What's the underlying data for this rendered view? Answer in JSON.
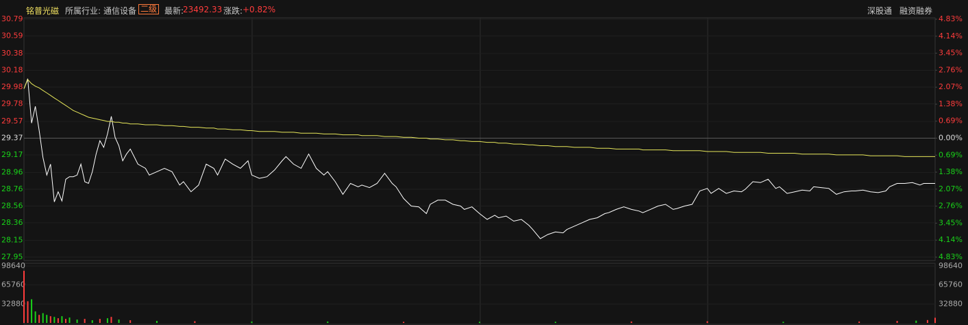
{
  "header": {
    "stock": "铭普光磁",
    "industry_label": "所属行业:",
    "industry": "通信设备",
    "level": "二级",
    "latest_label": "最新:",
    "latest": "23492.33",
    "change_label": "涨跌:",
    "change": "+0.82%",
    "tag1": "深股通",
    "tag2": "融资融券"
  },
  "chart_data": [
    {
      "type": "line",
      "x": [
        0,
        1,
        2,
        3,
        4,
        5,
        6,
        7,
        8,
        9,
        10,
        11,
        12,
        13,
        14,
        15,
        16,
        17,
        18,
        19,
        20,
        21,
        22,
        23,
        24,
        25,
        26,
        27,
        28,
        30,
        32,
        33,
        35,
        37,
        39,
        41,
        42,
        44,
        46,
        48,
        50,
        51,
        53,
        55,
        57,
        59,
        60,
        62,
        64,
        66,
        68,
        69,
        71,
        73,
        75,
        77,
        79,
        80,
        82,
        84,
        86,
        88,
        89,
        91,
        93,
        95,
        97,
        98,
        100,
        102,
        104,
        106,
        107,
        109,
        111,
        113,
        115,
        116,
        118,
        120,
        122,
        124,
        125,
        127,
        129,
        131,
        133,
        134,
        136,
        138,
        140,
        142,
        143,
        145,
        147,
        149,
        151,
        153,
        154,
        156,
        158,
        160,
        162,
        163,
        165,
        167,
        169,
        171,
        172,
        174,
        176,
        178,
        180,
        181,
        183,
        185,
        187,
        189,
        190,
        192,
        194,
        196,
        198,
        199,
        201,
        203,
        205,
        207,
        208,
        210,
        212,
        214,
        216,
        218,
        219,
        221,
        223,
        225,
        227,
        228,
        230,
        232,
        234,
        236,
        237,
        239,
        240
      ],
      "series": [
        {
          "color": "#ffffff",
          "values": [
            29.96,
            30.08,
            29.55,
            29.75,
            29.46,
            29.14,
            28.93,
            29.06,
            28.61,
            28.73,
            28.62,
            28.88,
            28.91,
            28.91,
            28.93,
            29.06,
            28.85,
            28.83,
            28.97,
            29.18,
            29.34,
            29.26,
            29.42,
            29.63,
            29.38,
            29.28,
            29.1,
            29.18,
            29.24,
            29.06,
            29.01,
            28.93,
            28.97,
            29.01,
            28.97,
            28.81,
            28.85,
            28.73,
            28.81,
            29.06,
            29.01,
            28.93,
            29.12,
            29.06,
            29.01,
            29.1,
            28.93,
            28.89,
            28.91,
            28.99,
            29.1,
            29.15,
            29.06,
            29.01,
            29.18,
            29.01,
            28.93,
            28.97,
            28.85,
            28.7,
            28.83,
            28.79,
            28.81,
            28.78,
            28.83,
            28.95,
            28.83,
            28.79,
            28.65,
            28.56,
            28.55,
            28.47,
            28.58,
            28.63,
            28.63,
            28.58,
            28.56,
            28.52,
            28.55,
            28.47,
            28.4,
            28.45,
            28.42,
            28.44,
            28.38,
            28.4,
            28.33,
            28.28,
            28.17,
            28.22,
            28.25,
            28.24,
            28.28,
            28.32,
            28.36,
            28.4,
            28.42,
            28.47,
            28.48,
            28.52,
            28.55,
            28.52,
            28.5,
            28.48,
            28.52,
            28.56,
            28.58,
            28.52,
            28.53,
            28.56,
            28.58,
            28.74,
            28.77,
            28.71,
            28.77,
            28.71,
            28.74,
            28.73,
            28.76,
            28.85,
            28.84,
            28.88,
            28.77,
            28.79,
            28.71,
            28.73,
            28.75,
            28.74,
            28.79,
            28.78,
            28.77,
            28.7,
            28.73,
            28.74,
            28.74,
            28.75,
            28.73,
            28.72,
            28.74,
            28.79,
            28.83,
            28.83,
            28.84,
            28.81,
            28.83,
            28.83,
            28.83
          ]
        },
        {
          "color": "#e6e65a",
          "values": [
            29.96,
            30.07,
            30.02,
            29.99,
            29.97,
            29.94,
            29.91,
            29.88,
            29.85,
            29.82,
            29.79,
            29.76,
            29.73,
            29.7,
            29.68,
            29.66,
            29.64,
            29.62,
            29.61,
            29.6,
            29.59,
            29.58,
            29.57,
            29.57,
            29.56,
            29.56,
            29.55,
            29.55,
            29.54,
            29.54,
            29.53,
            29.53,
            29.53,
            29.52,
            29.52,
            29.51,
            29.51,
            29.5,
            29.5,
            29.49,
            29.49,
            29.48,
            29.48,
            29.47,
            29.47,
            29.46,
            29.46,
            29.45,
            29.45,
            29.45,
            29.44,
            29.44,
            29.44,
            29.43,
            29.43,
            29.43,
            29.42,
            29.42,
            29.42,
            29.41,
            29.41,
            29.41,
            29.4,
            29.4,
            29.4,
            29.39,
            29.39,
            29.39,
            29.38,
            29.38,
            29.37,
            29.37,
            29.36,
            29.36,
            29.35,
            29.35,
            29.34,
            29.34,
            29.33,
            29.33,
            29.32,
            29.32,
            29.31,
            29.31,
            29.3,
            29.3,
            29.29,
            29.29,
            29.28,
            29.28,
            29.27,
            29.27,
            29.27,
            29.26,
            29.26,
            29.26,
            29.25,
            29.25,
            29.25,
            29.24,
            29.24,
            29.24,
            29.24,
            29.23,
            29.23,
            29.23,
            29.23,
            29.22,
            29.22,
            29.22,
            29.22,
            29.22,
            29.21,
            29.21,
            29.21,
            29.21,
            29.2,
            29.2,
            29.2,
            29.2,
            29.2,
            29.19,
            29.19,
            29.19,
            29.19,
            29.19,
            29.18,
            29.18,
            29.18,
            29.18,
            29.18,
            29.17,
            29.17,
            29.17,
            29.17,
            29.17,
            29.16,
            29.16,
            29.16,
            29.16,
            29.16,
            29.15,
            29.15,
            29.15,
            29.15,
            29.15,
            29.15
          ]
        }
      ],
      "xlim": [
        0,
        240
      ],
      "ylim": [
        27.95,
        30.79
      ],
      "yticks": [
        30.79,
        30.59,
        30.38,
        30.18,
        29.98,
        29.78,
        29.57,
        29.37,
        29.17,
        28.96,
        28.76,
        28.56,
        28.36,
        28.15,
        27.95
      ],
      "y2lim": [
        -4.83,
        4.83
      ],
      "y2ticks": [
        {
          "value": 4.83,
          "label": "4.83%"
        },
        {
          "value": 4.14,
          "label": "4.14%"
        },
        {
          "value": 3.45,
          "label": "3.45%"
        },
        {
          "value": 2.76,
          "label": "2.76%"
        },
        {
          "value": 2.07,
          "label": "2.07%"
        },
        {
          "value": 1.38,
          "label": "1.38%"
        },
        {
          "value": 0.69,
          "label": "0.69%"
        },
        {
          "value": 0,
          "label": "0.00%"
        },
        {
          "value": -0.69,
          "label": "0.69%"
        },
        {
          "value": -1.38,
          "label": "1.38%"
        },
        {
          "value": -2.07,
          "label": "2.07%"
        },
        {
          "value": -2.76,
          "label": "2.76%"
        },
        {
          "value": -3.45,
          "label": "3.45%"
        },
        {
          "value": -4.14,
          "label": "4.14%"
        },
        {
          "value": -4.83,
          "label": "4.83%"
        }
      ],
      "up_color": "#ff3c3c",
      "down_color": "#19d219",
      "grid": true
    },
    {
      "type": "bar",
      "x": [
        0,
        1,
        2,
        3,
        4,
        5,
        6,
        7,
        8,
        9,
        10,
        11,
        12,
        14,
        16,
        18,
        20,
        22,
        23,
        25,
        28,
        35,
        45,
        60,
        80,
        100,
        120,
        140,
        160,
        180,
        200,
        220,
        230,
        235,
        238,
        240
      ],
      "series": [
        {
          "color": "#ff3c3c",
          "values": [
            90400,
            37600,
            null,
            null,
            14000,
            null,
            null,
            11700,
            null,
            8200,
            null,
            7000,
            null,
            null,
            7000,
            null,
            7000,
            null,
            10500,
            null,
            4700,
            null,
            3000,
            null,
            null,
            2000,
            null,
            null,
            2500,
            3000,
            null,
            2500,
            3500,
            null,
            5000,
            9000
          ]
        },
        {
          "color": "#19d219",
          "values": [
            null,
            null,
            41000,
            20000,
            null,
            17000,
            14000,
            null,
            10500,
            null,
            11700,
            null,
            9400,
            5900,
            null,
            4700,
            null,
            8200,
            null,
            5900,
            null,
            3500,
            null,
            2500,
            2500,
            null,
            2000,
            2000,
            null,
            null,
            2000,
            null,
            null,
            4000,
            null,
            null
          ]
        }
      ],
      "xlim": [
        0,
        240
      ],
      "ylim": [
        0,
        98640
      ],
      "yticks": [
        32880,
        65760,
        98640
      ],
      "grid": true
    }
  ]
}
